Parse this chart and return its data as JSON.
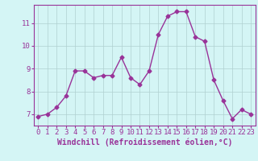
{
  "x": [
    0,
    1,
    2,
    3,
    4,
    5,
    6,
    7,
    8,
    9,
    10,
    11,
    12,
    13,
    14,
    15,
    16,
    17,
    18,
    19,
    20,
    21,
    22,
    23
  ],
  "y": [
    6.9,
    7.0,
    7.3,
    7.8,
    8.9,
    8.9,
    8.6,
    8.7,
    8.7,
    9.5,
    8.6,
    8.3,
    8.9,
    10.5,
    11.3,
    11.5,
    11.5,
    10.4,
    10.2,
    8.5,
    7.6,
    6.8,
    7.2,
    7.0
  ],
  "line_color": "#993399",
  "marker": "D",
  "markersize": 2.5,
  "linewidth": 1.0,
  "xlabel": "Windchill (Refroidissement éolien,°C)",
  "xlabel_fontsize": 7,
  "ylim": [
    6.5,
    11.8
  ],
  "xlim": [
    -0.5,
    23.5
  ],
  "yticks": [
    7,
    8,
    9,
    10,
    11
  ],
  "xticks": [
    0,
    1,
    2,
    3,
    4,
    5,
    6,
    7,
    8,
    9,
    10,
    11,
    12,
    13,
    14,
    15,
    16,
    17,
    18,
    19,
    20,
    21,
    22,
    23
  ],
  "tick_fontsize": 6.5,
  "bg_color": "#d4f5f5",
  "grid_color": "#b0d0d0",
  "fig_bg": "#d4f5f5",
  "spine_color": "#993399",
  "axis_bg": "#d4f5f5"
}
